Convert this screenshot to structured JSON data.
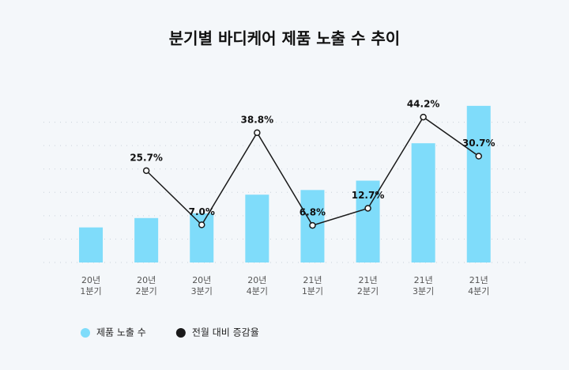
{
  "chart_data": {
    "type": "bar",
    "title": "분기별 바디케어 제품 노출 수 추이",
    "categories": [
      "20년\n1분기",
      "20년\n2분기",
      "20년\n3분기",
      "20년\n4분기",
      "21년\n1분기",
      "21년\n2분기",
      "21년\n3분기",
      "21년\n4분기"
    ],
    "series": [
      {
        "name": "제품 노출 수",
        "type": "bar",
        "color": "#7fdcfa",
        "values": [
          1.5,
          1.9,
          2.1,
          2.9,
          3.1,
          3.5,
          5.1,
          6.7
        ]
      },
      {
        "name": "전월 대비 증감율",
        "type": "line",
        "axis": "y2",
        "color": "#1a1a1a",
        "values": [
          null,
          25.7,
          7.0,
          38.8,
          6.8,
          12.7,
          44.2,
          30.7
        ],
        "value_labels": [
          null,
          "25.7%",
          "7.0%",
          "38.8%",
          "6.8%",
          "12.7%",
          "44.2%",
          "30.7%"
        ]
      }
    ],
    "ylim": [
      0,
      7
    ],
    "yticks": [
      0,
      1,
      2,
      3,
      4,
      5,
      6
    ],
    "y2lim": [
      -6,
      50.5
    ],
    "grid": true,
    "legend": "bottom-left"
  }
}
